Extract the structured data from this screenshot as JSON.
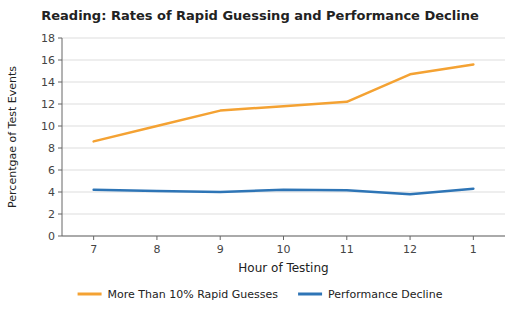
{
  "chart_data": {
    "type": "line",
    "title": "Reading: Rates of Rapid Guessing and Performance Decline",
    "x_label": "Hour of Testing",
    "y_label": "Percentgae of Test Events",
    "categories": [
      "7",
      "8",
      "9",
      "10",
      "11",
      "12",
      "1"
    ],
    "series": [
      {
        "name": "More Than 10% Rapid Guesses",
        "color": "#F4A233",
        "values": [
          8.6,
          10.0,
          11.4,
          11.8,
          12.2,
          14.7,
          15.6
        ]
      },
      {
        "name": "Performance Decline",
        "color": "#2E75B6",
        "values": [
          4.2,
          4.1,
          4.0,
          4.2,
          4.15,
          3.8,
          4.3
        ]
      }
    ],
    "ylim": [
      0,
      18
    ],
    "yticks": [
      0,
      2,
      4,
      6,
      8,
      10,
      12,
      14,
      16,
      18
    ],
    "grid": true,
    "legend": "bottom"
  }
}
